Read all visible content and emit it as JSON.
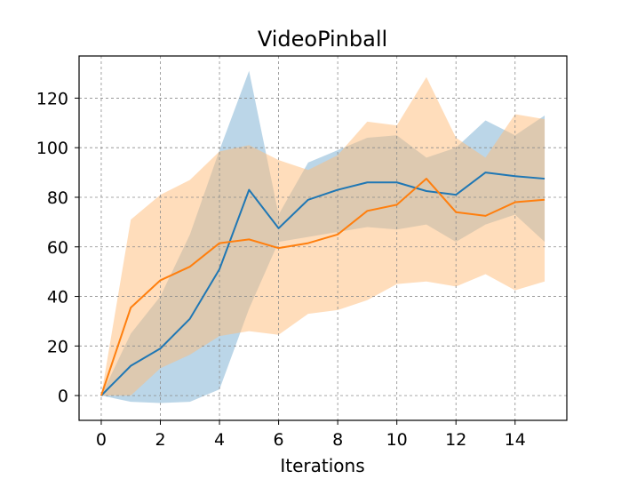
{
  "chart_data": {
    "type": "line",
    "title": "VideoPinball",
    "xlabel": "Iterations",
    "ylabel": "",
    "xlim": [
      -0.75,
      15.75
    ],
    "ylim": [
      -10,
      137
    ],
    "xticks": [
      0,
      2,
      4,
      6,
      8,
      10,
      12,
      14
    ],
    "yticks": [
      0,
      20,
      40,
      60,
      80,
      100,
      120
    ],
    "grid": true,
    "x": [
      0,
      1,
      2,
      3,
      4,
      5,
      6,
      7,
      8,
      9,
      10,
      11,
      12,
      13,
      14,
      15
    ],
    "series": [
      {
        "color": "#1f77b4",
        "band_color": "#1f77b4",
        "mean": [
          0,
          12,
          19,
          31,
          51,
          83,
          67.5,
          79,
          83,
          86,
          86,
          82.5,
          81,
          90,
          88.5,
          87.5
        ],
        "lower": [
          0,
          -2.5,
          -3,
          -2.5,
          2.5,
          35,
          62,
          64,
          66,
          68,
          67,
          69,
          62,
          69,
          73,
          62
        ],
        "upper": [
          0,
          25,
          40,
          65,
          99,
          131,
          73,
          94,
          99,
          104,
          105,
          96,
          100,
          111,
          105,
          113
        ]
      },
      {
        "color": "#ff7f0e",
        "band_color": "#ffbb78",
        "mean": [
          0,
          35.5,
          46.5,
          52,
          61.5,
          63,
          59.5,
          61.5,
          65,
          74.5,
          77,
          87.5,
          74,
          72.5,
          78,
          79
        ],
        "lower": [
          0,
          0,
          11,
          16.5,
          24,
          26,
          24.5,
          33,
          34.5,
          38.5,
          45,
          46,
          44,
          49,
          42.5,
          46
        ],
        "upper": [
          0,
          71,
          81,
          87,
          98.5,
          101,
          95,
          91,
          97,
          110.5,
          109,
          128.5,
          104,
          96,
          113.5,
          111.5
        ]
      }
    ]
  }
}
